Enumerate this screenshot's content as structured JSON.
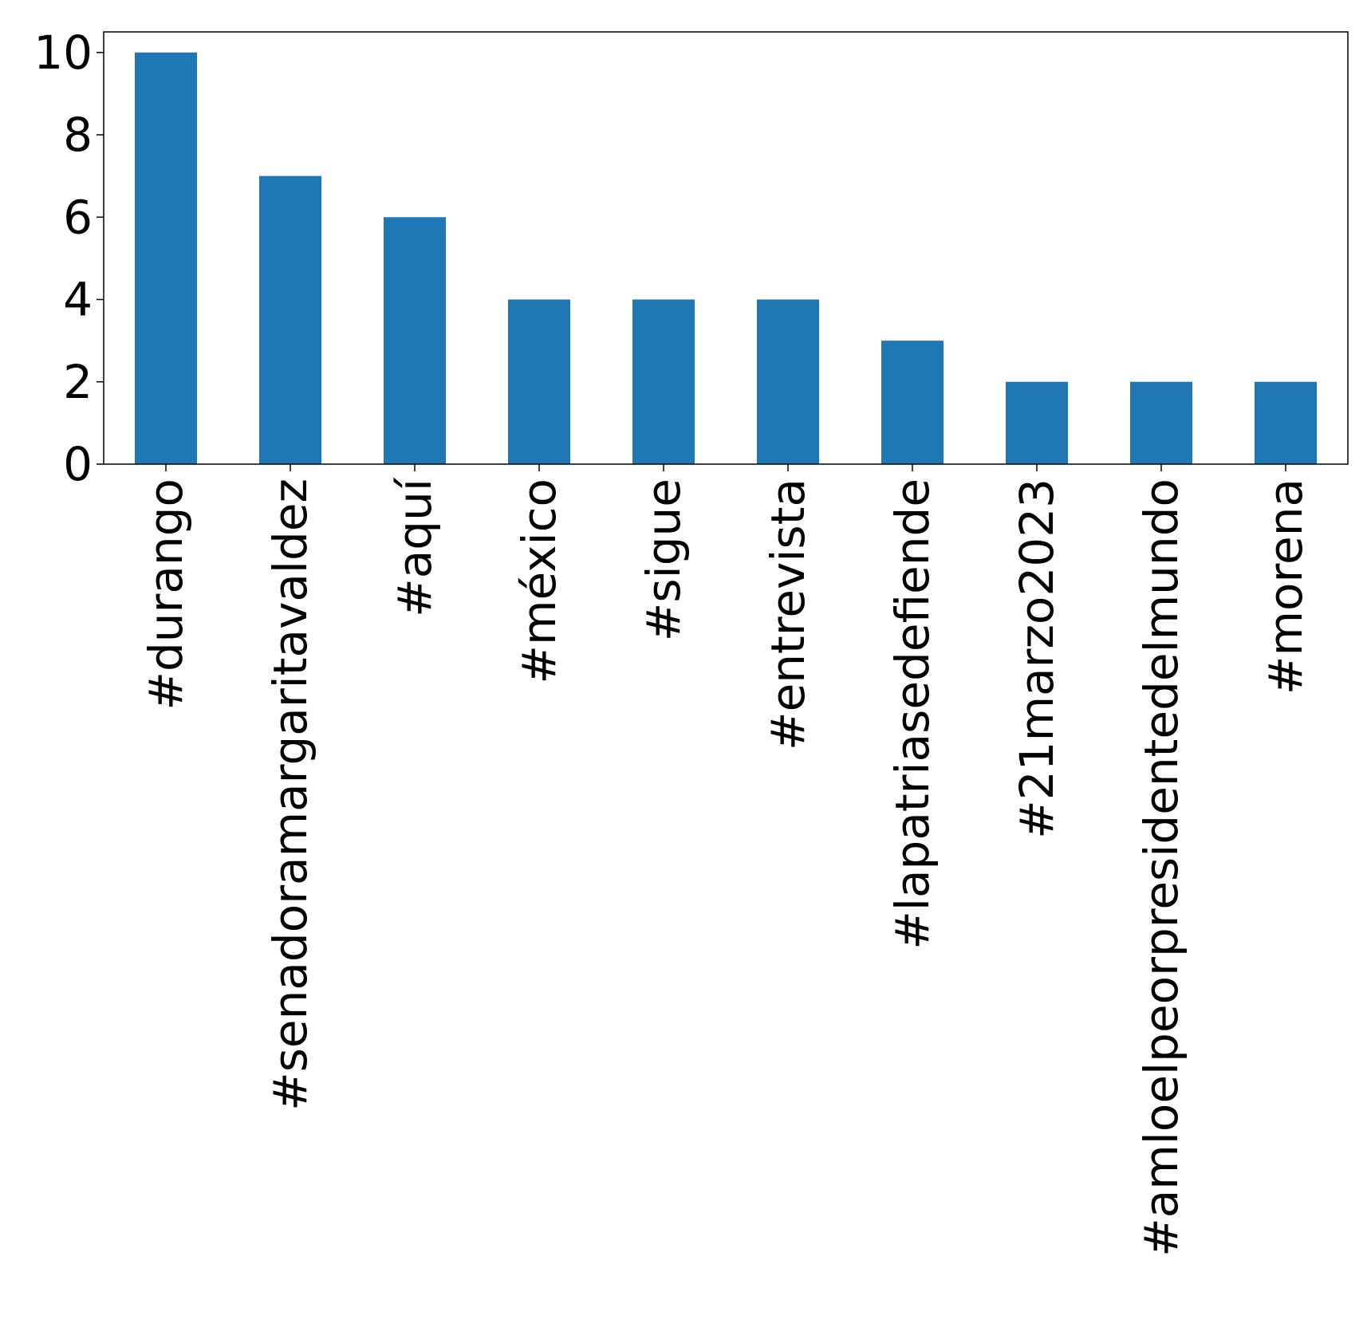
{
  "chart_data": {
    "type": "bar",
    "title": "",
    "xlabel": "",
    "ylabel": "",
    "categories": [
      "#durango",
      "#senadoramargaritavaldez",
      "#aquí",
      "#méxico",
      "#sigue",
      "#entrevista",
      "#lapatriasedefiende",
      "#21marzo2023",
      "#amloelpeorpresidentedelmundo",
      "#morena"
    ],
    "values": [
      10,
      7,
      6,
      4,
      4,
      4,
      3,
      2,
      2,
      2
    ],
    "ylim": [
      0,
      10.5
    ],
    "yticks": [
      0,
      2,
      4,
      6,
      8,
      10
    ],
    "ytick_labels": [
      "0",
      "2",
      "4",
      "6",
      "8",
      "10"
    ],
    "bar_color": "#1f77b4",
    "grid": false,
    "legend": "none"
  }
}
